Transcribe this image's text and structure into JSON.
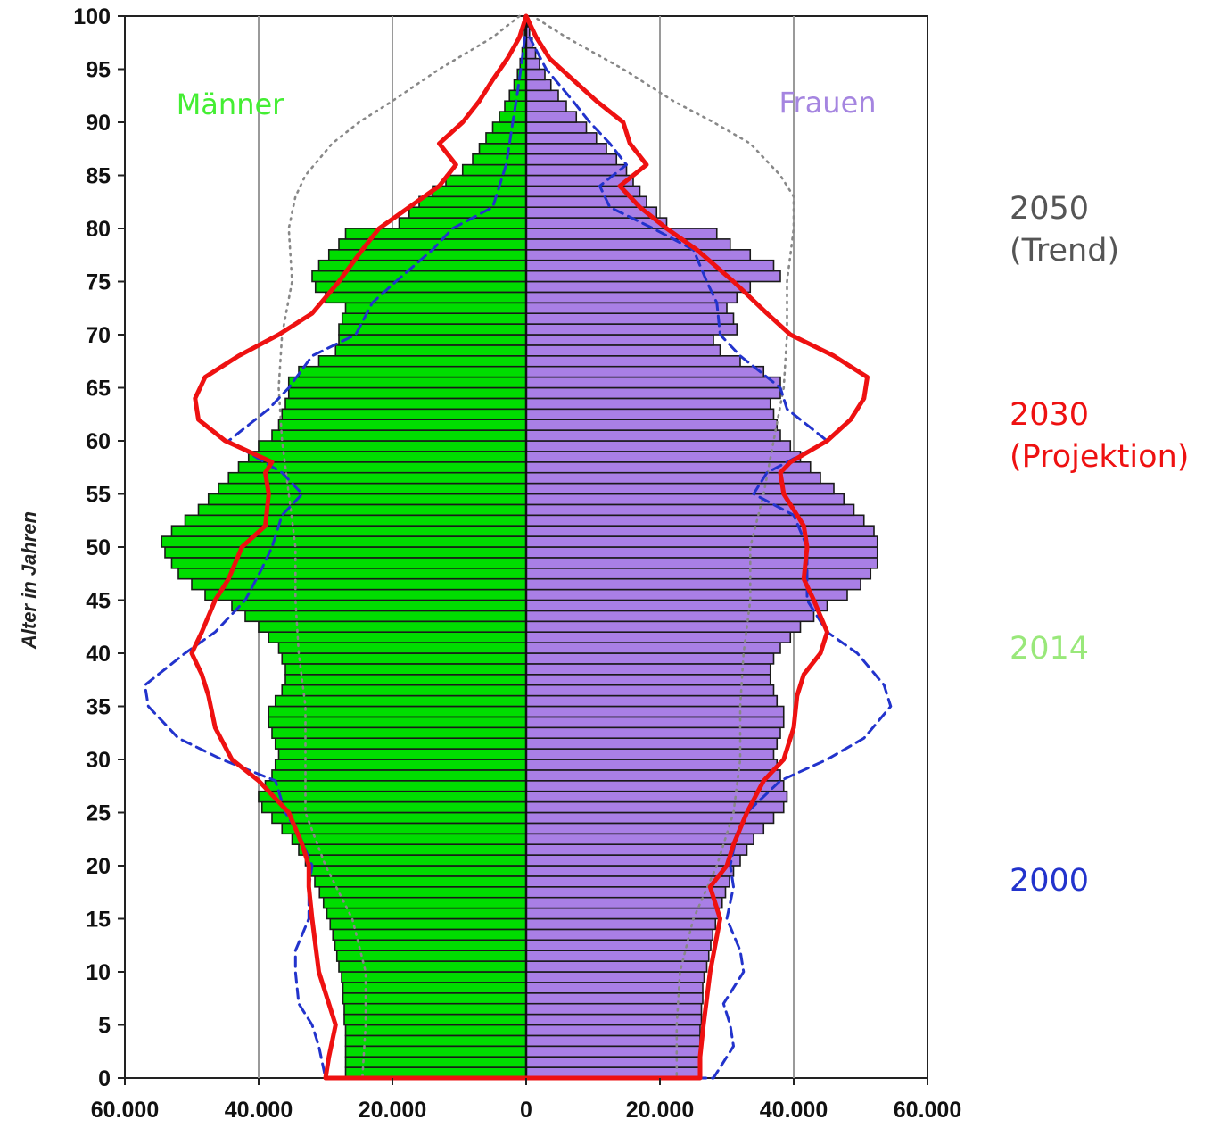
{
  "chart_data": {
    "type": "bar",
    "orientation": "horizontal-population-pyramid",
    "ylabel": "Alter in Jahren",
    "xlim": [
      -60000,
      60000
    ],
    "ylim": [
      0,
      100
    ],
    "grid": "vertical lines at x tick positions",
    "x_ticks": [
      {
        "value": -60000,
        "label": "60.000"
      },
      {
        "value": -40000,
        "label": "40.000"
      },
      {
        "value": -20000,
        "label": "20.000"
      },
      {
        "value": 0,
        "label": "0"
      },
      {
        "value": 20000,
        "label": "20.000"
      },
      {
        "value": 40000,
        "label": "40.000"
      },
      {
        "value": 60000,
        "label": "60.000"
      }
    ],
    "y_ticks": [
      "0",
      "5",
      "10",
      "15",
      "20",
      "25",
      "30",
      "35",
      "40",
      "45",
      "50",
      "55",
      "60",
      "65",
      "70",
      "75",
      "80",
      "85",
      "90",
      "95",
      "100"
    ],
    "side_labels": {
      "left": "Männer",
      "right": "Frauen"
    },
    "legend": [
      {
        "year": "2050",
        "note": "(Trend)",
        "color": "#555555",
        "style": "dotted"
      },
      {
        "year": "2030",
        "note": "(Projektion)",
        "color": "#ee1111",
        "style": "solid"
      },
      {
        "year": "2014",
        "note": "",
        "color": "#99e87a",
        "style": "bars"
      },
      {
        "year": "2000",
        "note": "",
        "color": "#2233cc",
        "style": "dashed"
      }
    ],
    "colors": {
      "men": "#00dd00",
      "women": "#a97fe6",
      "line2030": "#ee1111",
      "line2000": "#2233cc",
      "line2050": "#888888",
      "grid": "#9a9a9a"
    },
    "series": [
      {
        "name": "2014",
        "key": "2014",
        "ages": [
          0,
          1,
          2,
          3,
          4,
          5,
          6,
          7,
          8,
          9,
          10,
          11,
          12,
          13,
          14,
          15,
          16,
          17,
          18,
          19,
          20,
          21,
          22,
          23,
          24,
          25,
          26,
          27,
          28,
          29,
          30,
          31,
          32,
          33,
          34,
          35,
          36,
          37,
          38,
          39,
          40,
          41,
          42,
          43,
          44,
          45,
          46,
          47,
          48,
          49,
          50,
          51,
          52,
          53,
          54,
          55,
          56,
          57,
          58,
          59,
          60,
          61,
          62,
          63,
          64,
          65,
          66,
          67,
          68,
          69,
          70,
          71,
          72,
          73,
          74,
          75,
          76,
          77,
          78,
          79,
          80,
          81,
          82,
          83,
          84,
          85,
          86,
          87,
          88,
          89,
          90,
          91,
          92,
          93,
          94,
          95,
          96,
          97,
          98,
          99
        ],
        "men": [
          27000,
          27000,
          27000,
          27000,
          27000,
          27200,
          27200,
          27400,
          27400,
          27600,
          28000,
          28300,
          28600,
          28900,
          29300,
          29800,
          30300,
          30900,
          31600,
          32300,
          33000,
          34000,
          35000,
          36500,
          38000,
          39500,
          40000,
          39000,
          38000,
          37500,
          37000,
          37500,
          38000,
          38500,
          38500,
          37500,
          36500,
          36000,
          36000,
          36500,
          37000,
          38500,
          40000,
          42000,
          44000,
          48000,
          50000,
          52000,
          53000,
          54000,
          54500,
          53000,
          51000,
          49000,
          47500,
          46000,
          44500,
          43000,
          41500,
          40000,
          38000,
          37000,
          36500,
          36000,
          35500,
          35500,
          34000,
          31000,
          28500,
          28000,
          28000,
          27500,
          27000,
          30000,
          31500,
          32000,
          31000,
          29500,
          28000,
          27000,
          19000,
          17500,
          16000,
          14000,
          12000,
          9500,
          8000,
          7000,
          6000,
          5000,
          4000,
          3200,
          2500,
          1800,
          1300,
          900,
          600,
          400,
          250,
          150
        ],
        "women": [
          26000,
          26000,
          26000,
          26000,
          26000,
          26200,
          26200,
          26400,
          26400,
          26600,
          27000,
          27300,
          27600,
          27900,
          28300,
          28800,
          29300,
          29800,
          30400,
          31000,
          32000,
          33000,
          34000,
          35500,
          37000,
          38500,
          39000,
          38500,
          38000,
          37500,
          37000,
          37500,
          38000,
          38500,
          38500,
          37500,
          37000,
          36500,
          36500,
          37000,
          38000,
          39500,
          41000,
          43000,
          45000,
          48000,
          50000,
          51500,
          52500,
          52500,
          52500,
          52000,
          50500,
          49000,
          47500,
          46000,
          44000,
          42500,
          41000,
          39500,
          38000,
          37500,
          37000,
          36500,
          38000,
          38000,
          35500,
          32000,
          29000,
          28000,
          31500,
          31000,
          30000,
          31500,
          33500,
          38000,
          37000,
          33500,
          30500,
          28500,
          21000,
          19500,
          18000,
          17000,
          16000,
          15000,
          13500,
          12000,
          10500,
          9000,
          7500,
          6000,
          4800,
          3700,
          2800,
          2000,
          1400,
          900,
          500,
          250
        ]
      },
      {
        "name": "2030",
        "key": "2030",
        "ages": [
          0,
          2,
          5,
          10,
          15,
          18,
          20,
          22,
          25,
          28,
          30,
          33,
          36,
          38,
          40,
          42,
          45,
          47,
          50,
          52,
          55,
          57,
          58,
          60,
          62,
          64,
          66,
          68,
          70,
          72,
          75,
          78,
          80,
          82,
          84,
          86,
          88,
          90,
          92,
          94,
          96,
          98,
          100
        ],
        "men": [
          30000,
          29500,
          28500,
          31000,
          32000,
          32500,
          32500,
          33500,
          35500,
          40000,
          44000,
          46500,
          47500,
          48500,
          50000,
          48500,
          46500,
          44500,
          42500,
          39000,
          38500,
          39000,
          38000,
          45000,
          49000,
          49500,
          48000,
          43000,
          37000,
          32000,
          28000,
          24500,
          22000,
          17500,
          13000,
          10500,
          13000,
          9500,
          7000,
          5000,
          2800,
          1000,
          0
        ],
        "women": [
          26000,
          26000,
          26500,
          27500,
          29000,
          27500,
          30000,
          31000,
          33000,
          35500,
          38500,
          40000,
          40500,
          41500,
          44000,
          45000,
          43000,
          41500,
          42000,
          41500,
          38500,
          38000,
          39500,
          45000,
          48500,
          50500,
          51000,
          46000,
          39500,
          36000,
          31000,
          25500,
          21000,
          17000,
          14000,
          18000,
          15500,
          14500,
          10500,
          7000,
          3500,
          1500,
          0
        ]
      },
      {
        "name": "2000",
        "key": "2000",
        "ages": [
          0,
          3,
          5,
          7,
          10,
          12,
          15,
          18,
          20,
          23,
          25,
          28,
          30,
          32,
          35,
          37,
          40,
          42,
          45,
          48,
          50,
          53,
          55,
          57,
          60,
          63,
          65,
          68,
          70,
          73,
          75,
          78,
          80,
          82,
          84,
          86,
          88,
          90,
          92,
          95,
          98
        ],
        "men": [
          30000,
          31000,
          32000,
          34000,
          34500,
          34500,
          32500,
          32500,
          32000,
          34000,
          36000,
          37500,
          45500,
          52000,
          56500,
          57000,
          51000,
          46500,
          42000,
          39500,
          38000,
          36500,
          33500,
          36500,
          44500,
          38500,
          35500,
          32000,
          25500,
          23000,
          19500,
          14000,
          11000,
          5000,
          4000,
          3000,
          2500,
          2000,
          1500,
          800,
          200
        ],
        "women": [
          28000,
          31000,
          30500,
          29500,
          32500,
          32000,
          30000,
          31000,
          30500,
          31500,
          33000,
          38000,
          45000,
          50500,
          54500,
          53500,
          49500,
          45000,
          42000,
          42000,
          42000,
          40000,
          34000,
          36000,
          45000,
          39000,
          38000,
          32000,
          29000,
          28500,
          27000,
          25000,
          19000,
          12500,
          11000,
          15000,
          12500,
          9500,
          7000,
          3000,
          500
        ]
      },
      {
        "name": "2050 (Trend)",
        "key": "2050",
        "ages": [
          0,
          5,
          10,
          15,
          20,
          25,
          30,
          35,
          40,
          45,
          50,
          55,
          60,
          65,
          70,
          75,
          80,
          83,
          85,
          88,
          90,
          92,
          95,
          98,
          100
        ],
        "men": [
          24500,
          24000,
          24000,
          26000,
          30000,
          33000,
          33000,
          33000,
          34000,
          34500,
          34500,
          35500,
          36500,
          37000,
          36500,
          35000,
          35500,
          34500,
          33000,
          29000,
          25000,
          20000,
          13000,
          5000,
          1000
        ],
        "women": [
          22500,
          22500,
          23000,
          25000,
          28500,
          31000,
          32000,
          32000,
          32500,
          33500,
          33500,
          35500,
          37000,
          38500,
          39000,
          39000,
          40000,
          40000,
          38000,
          33500,
          28000,
          22000,
          14500,
          6000,
          1000
        ]
      }
    ]
  }
}
